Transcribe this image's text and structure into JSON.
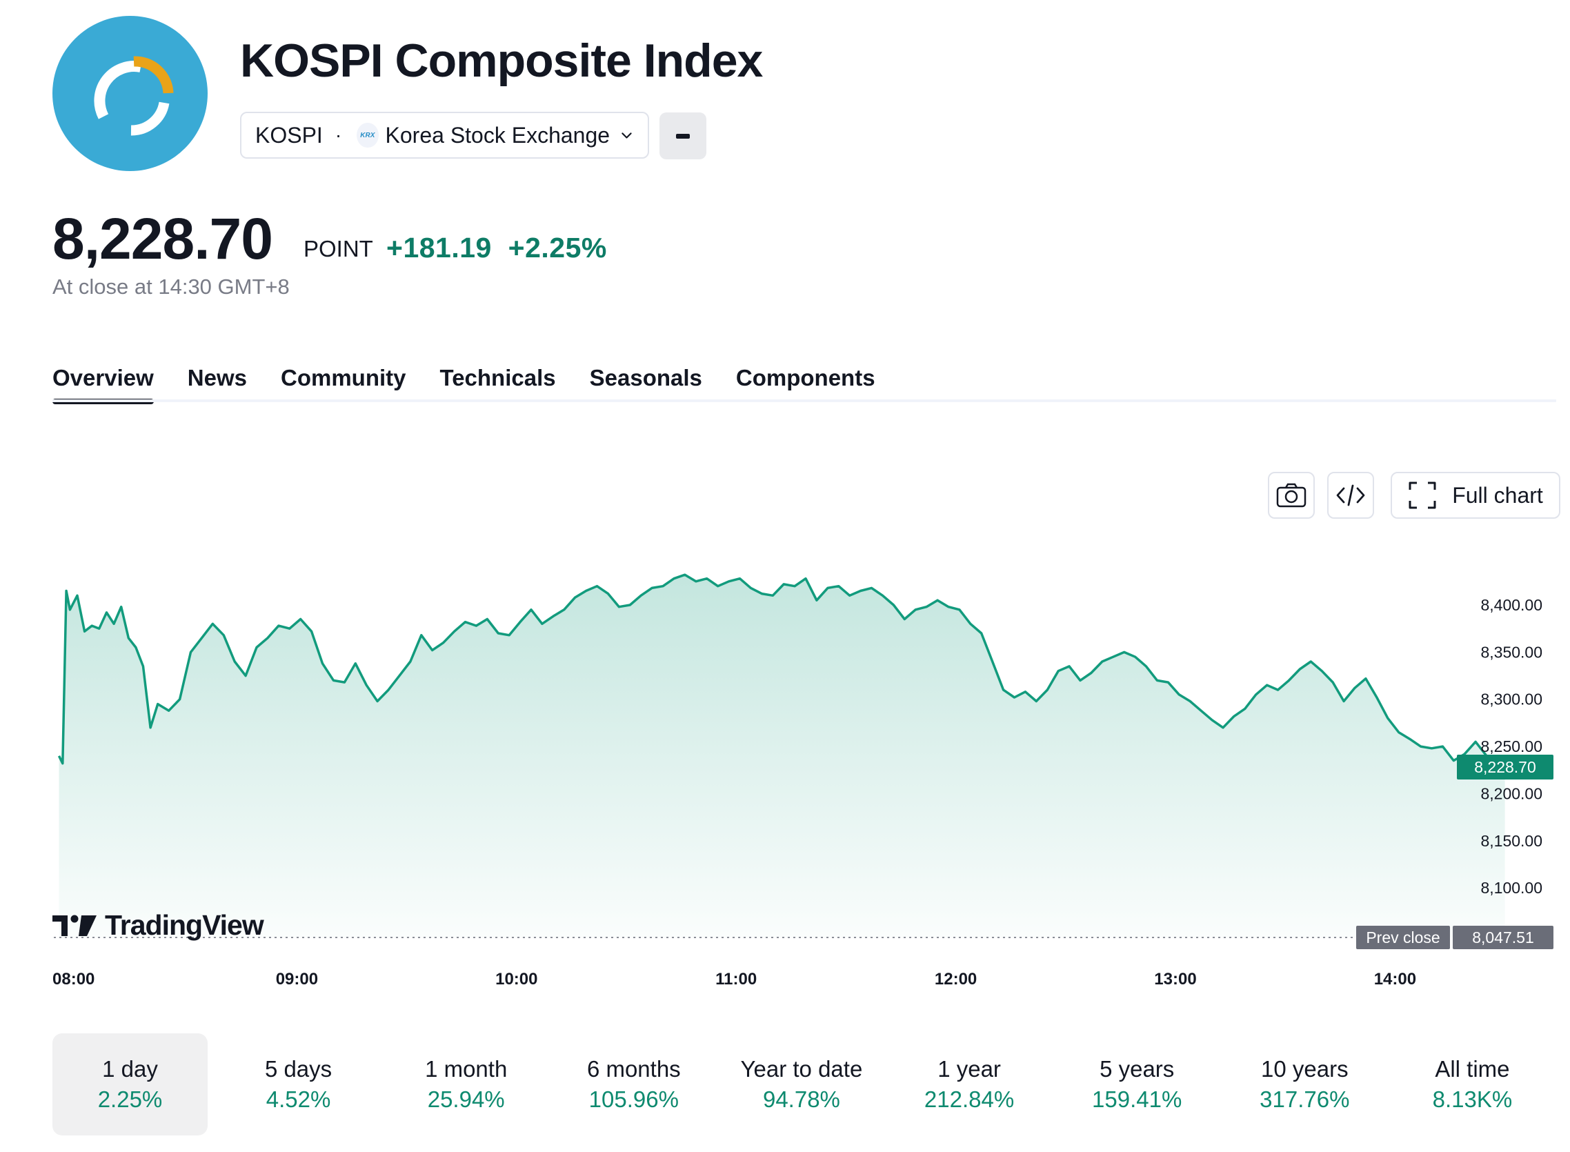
{
  "header": {
    "title": "KOSPI Composite Index",
    "symbol": "KOSPI",
    "separator": "·",
    "exchange_badge": "KRX",
    "exchange": "Korea Stock Exchange"
  },
  "quote": {
    "price": "8,228.70",
    "unit": "POINT",
    "change": "+181.19",
    "change_percent": "+2.25%",
    "close_info": "At close at 14:30 GMT+8"
  },
  "tabs": [
    {
      "label": "Overview",
      "active": true
    },
    {
      "label": "News"
    },
    {
      "label": "Community"
    },
    {
      "label": "Technicals"
    },
    {
      "label": "Seasonals"
    },
    {
      "label": "Components"
    }
  ],
  "toolbar": {
    "full_chart_label": "Full chart"
  },
  "branding": {
    "tradingview": "TradingView"
  },
  "colors": {
    "accent": "#0e8a6f",
    "line": "#129b7d",
    "prev_close_tag": "#6a6d78"
  },
  "chart_data": {
    "type": "area",
    "x_ticks": [
      "08:00",
      "09:00",
      "10:00",
      "11:00",
      "12:00",
      "13:00",
      "14:00"
    ],
    "y_ticks": [
      "8,400.00",
      "8,350.00",
      "8,300.00",
      "8,250.00",
      "8,200.00",
      "8,150.00",
      "8,100.00"
    ],
    "ylim": [
      8047.51,
      8420
    ],
    "last_value_label": "8,228.70",
    "prev_close_label": "Prev close",
    "prev_close_value": "8,047.51",
    "series": [
      {
        "x": [
          "07:55",
          "07:56",
          "07:57",
          "07:58",
          "08:00",
          "08:02",
          "08:04",
          "08:06",
          "08:08",
          "08:10",
          "08:12",
          "08:14",
          "08:16",
          "08:18",
          "08:20",
          "08:22",
          "08:25",
          "08:28",
          "08:31",
          "08:34",
          "08:37",
          "08:40",
          "08:43",
          "08:46",
          "08:49",
          "08:52",
          "08:55",
          "08:58",
          "09:01",
          "09:04",
          "09:07",
          "09:10",
          "09:13",
          "09:16",
          "09:19",
          "09:22",
          "09:25",
          "09:28",
          "09:31",
          "09:34",
          "09:37",
          "09:40",
          "09:43",
          "09:46",
          "09:49",
          "09:52",
          "09:55",
          "09:58",
          "10:01",
          "10:04",
          "10:07",
          "10:10",
          "10:13",
          "10:16",
          "10:19",
          "10:22",
          "10:25",
          "10:28",
          "10:31",
          "10:34",
          "10:37",
          "10:40",
          "10:43",
          "10:46",
          "10:49",
          "10:52",
          "10:55",
          "10:58",
          "11:01",
          "11:04",
          "11:07",
          "11:10",
          "11:13",
          "11:16",
          "11:19",
          "11:22",
          "11:25",
          "11:28",
          "11:31",
          "11:34",
          "11:37",
          "11:40",
          "11:43",
          "11:46",
          "11:49",
          "11:52",
          "11:55",
          "11:58",
          "12:01",
          "12:04",
          "12:07",
          "12:10",
          "12:13",
          "12:16",
          "12:19",
          "12:22",
          "12:25",
          "12:28",
          "12:31",
          "12:34",
          "12:37",
          "12:40",
          "12:43",
          "12:46",
          "12:49",
          "12:52",
          "12:55",
          "12:58",
          "13:01",
          "13:04",
          "13:07",
          "13:10",
          "13:13",
          "13:16",
          "13:19",
          "13:22",
          "13:25",
          "13:28",
          "13:31",
          "13:34",
          "13:37",
          "13:40",
          "13:43",
          "13:46",
          "13:49",
          "13:52",
          "13:55",
          "13:58",
          "14:01",
          "14:04",
          "14:07",
          "14:10",
          "14:13",
          "14:16",
          "14:19",
          "14:22",
          "14:25",
          "14:28",
          "14:30"
        ],
        "values": [
          8240,
          8232,
          8415,
          8395,
          8410,
          8372,
          8378,
          8375,
          8392,
          8380,
          8398,
          8365,
          8355,
          8335,
          8270,
          8295,
          8288,
          8300,
          8350,
          8365,
          8380,
          8368,
          8340,
          8325,
          8355,
          8365,
          8378,
          8375,
          8385,
          8372,
          8338,
          8320,
          8318,
          8338,
          8315,
          8298,
          8310,
          8325,
          8340,
          8368,
          8352,
          8360,
          8372,
          8382,
          8378,
          8385,
          8370,
          8368,
          8382,
          8395,
          8380,
          8388,
          8395,
          8408,
          8415,
          8420,
          8412,
          8398,
          8400,
          8410,
          8418,
          8420,
          8428,
          8432,
          8425,
          8428,
          8420,
          8425,
          8428,
          8418,
          8412,
          8410,
          8422,
          8420,
          8428,
          8405,
          8418,
          8420,
          8410,
          8415,
          8418,
          8410,
          8400,
          8385,
          8395,
          8398,
          8405,
          8398,
          8395,
          8380,
          8370,
          8340,
          8310,
          8302,
          8308,
          8298,
          8310,
          8330,
          8335,
          8320,
          8328,
          8340,
          8345,
          8350,
          8345,
          8335,
          8320,
          8318,
          8305,
          8298,
          8288,
          8278,
          8270,
          8282,
          8290,
          8305,
          8315,
          8310,
          8320,
          8332,
          8340,
          8330,
          8318,
          8298,
          8312,
          8322,
          8302,
          8280,
          8265,
          8258,
          8250,
          8248,
          8250,
          8235,
          8242,
          8255,
          8240,
          8230,
          8228.7
        ],
        "line_color": "#129b7d"
      }
    ]
  },
  "periods": [
    {
      "label": "1 day",
      "value": "2.25%",
      "active": true
    },
    {
      "label": "5 days",
      "value": "4.52%"
    },
    {
      "label": "1 month",
      "value": "25.94%"
    },
    {
      "label": "6 months",
      "value": "105.96%"
    },
    {
      "label": "Year to date",
      "value": "94.78%"
    },
    {
      "label": "1 year",
      "value": "212.84%"
    },
    {
      "label": "5 years",
      "value": "159.41%"
    },
    {
      "label": "10 years",
      "value": "317.76%"
    },
    {
      "label": "All time",
      "value": "8.13K%"
    }
  ]
}
